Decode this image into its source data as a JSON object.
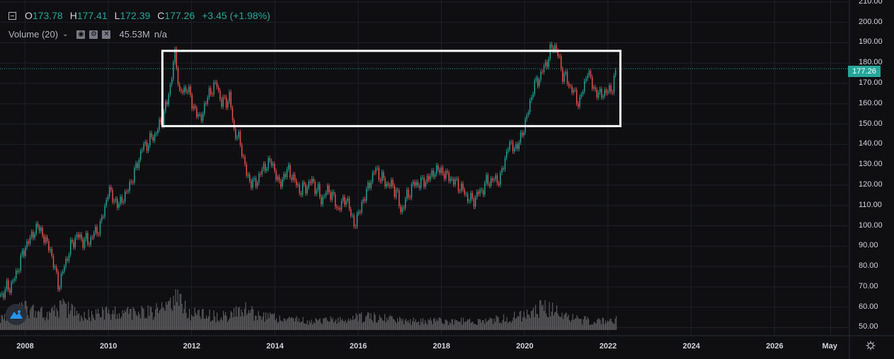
{
  "legend": {
    "open_key": "O",
    "open": "173.78",
    "high_key": "H",
    "high": "177.41",
    "low_key": "L",
    "low": "172.39",
    "close_key": "C",
    "close": "177.26",
    "change": "+3.45 (+1.98%)"
  },
  "volume": {
    "label": "Volume (20)",
    "value": "45.53M",
    "na": "n/a"
  },
  "price_tag": "177.26",
  "colors": {
    "up": "#26a69a",
    "down": "#ef5350",
    "volume": "#5a5a5e",
    "box": "#ffffff",
    "bg": "#0f0f12"
  },
  "chart_data": {
    "type": "line",
    "y_ticks": [
      "210.00",
      "200.00",
      "190.00",
      "180.00",
      "170.00",
      "160.00",
      "150.00",
      "140.00",
      "130.00",
      "120.00",
      "110.00",
      "100.00",
      "90.00",
      "80.00",
      "70.00",
      "60.00",
      "50.00"
    ],
    "x_ticks": [
      "2008",
      "2010",
      "2012",
      "2014",
      "2016",
      "2018",
      "2020",
      "2022",
      "2024",
      "2026",
      "May"
    ],
    "ylim": [
      46,
      211
    ],
    "xlim": [
      2007.4,
      2027.8
    ],
    "last_close": 177.26,
    "series": [
      {
        "x": [
          2007.4,
          2007.7,
          2008.0,
          2008.3,
          2008.6,
          2008.8,
          2009.0,
          2009.2,
          2009.5,
          2009.8,
          2010.0,
          2010.2,
          2010.4,
          2010.6,
          2010.8,
          2011.0,
          2011.2,
          2011.4,
          2011.6,
          2011.7,
          2011.9,
          2012.0,
          2012.2,
          2012.4,
          2012.6,
          2012.7,
          2012.9,
          2013.0,
          2013.2,
          2013.3,
          2013.5,
          2013.7,
          2013.9,
          2014.1,
          2014.3,
          2014.6,
          2014.9,
          2015.1,
          2015.3,
          2015.5,
          2015.7,
          2015.9,
          2016.1,
          2016.4,
          2016.6,
          2016.9,
          2017.0,
          2017.3,
          2017.6,
          2017.9,
          2018.1,
          2018.4,
          2018.7,
          2018.9,
          2019.1,
          2019.4,
          2019.6,
          2019.8,
          2020.0,
          2020.2,
          2020.4,
          2020.6,
          2020.7,
          2020.9,
          2021.1,
          2021.3,
          2021.5,
          2021.7,
          2021.9,
          2022.1,
          2022.2
        ],
        "y": [
          66,
          72,
          90,
          100,
          88,
          70,
          85,
          95,
          92,
          100,
          118,
          110,
          115,
          125,
          138,
          142,
          148,
          160,
          185,
          165,
          168,
          160,
          152,
          165,
          170,
          160,
          163,
          148,
          138,
          125,
          120,
          128,
          132,
          120,
          128,
          117,
          122,
          113,
          118,
          108,
          114,
          100,
          112,
          128,
          122,
          118,
          107,
          120,
          122,
          128,
          125,
          120,
          112,
          116,
          122,
          123,
          140,
          138,
          150,
          168,
          175,
          185,
          190,
          175,
          168,
          160,
          176,
          165,
          165,
          168,
          177
        ]
      }
    ],
    "volume": {
      "x": [
        2007.4,
        2008.0,
        2008.6,
        2008.9,
        2009.3,
        2010.0,
        2010.6,
        2011.2,
        2011.6,
        2011.9,
        2012.4,
        2012.9,
        2013.2,
        2013.7,
        2014.3,
        2015.0,
        2015.7,
        2016.2,
        2016.8,
        2017.5,
        2018.2,
        2018.9,
        2019.5,
        2020.0,
        2020.3,
        2020.6,
        2020.9,
        2021.3,
        2021.7,
        2022.2
      ],
      "value": [
        45,
        70,
        55,
        80,
        50,
        60,
        55,
        65,
        110,
        60,
        50,
        45,
        75,
        45,
        35,
        30,
        40,
        45,
        35,
        30,
        30,
        30,
        40,
        50,
        70,
        75,
        45,
        35,
        30,
        35
      ]
    },
    "annotations": [
      {
        "type": "rectangle",
        "x": [
          2011.3,
          2022.3
        ],
        "y": [
          149,
          186
        ]
      }
    ]
  }
}
